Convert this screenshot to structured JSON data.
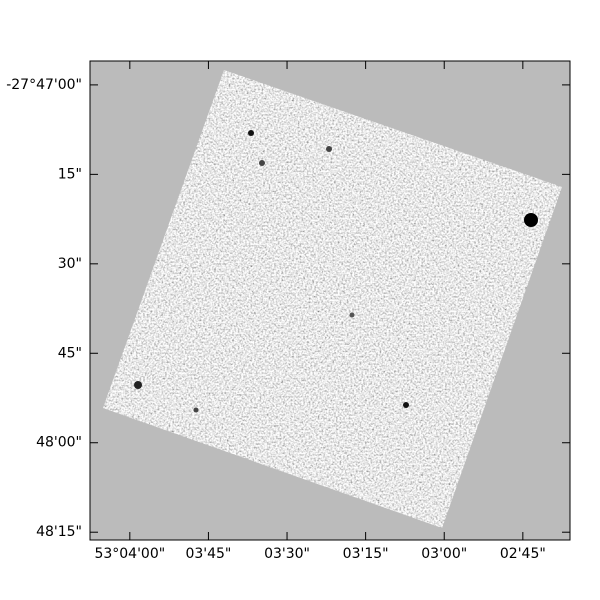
{
  "chart_data": {
    "type": "image",
    "xlim": [
      53.068778,
      53.043333
    ],
    "ylim": [
      -27.80453,
      -27.78222
    ],
    "xticks": [
      {
        "value": 53.066667,
        "label": "53°04'00\""
      },
      {
        "value": 53.0625,
        "label": "03'45\""
      },
      {
        "value": 53.058333,
        "label": "03'30\""
      },
      {
        "value": 53.054167,
        "label": "03'15\""
      },
      {
        "value": 53.05,
        "label": "03'00\""
      },
      {
        "value": 53.045833,
        "label": "02'45\""
      }
    ],
    "yticks": [
      {
        "value": -27.783333,
        "label": "-27°47'00\""
      },
      {
        "value": -27.7875,
        "label": "15\""
      },
      {
        "value": -27.791667,
        "label": "30\""
      },
      {
        "value": -27.795833,
        "label": "45\""
      },
      {
        "value": -27.8,
        "label": "48'00\""
      },
      {
        "value": -27.804167,
        "label": "48'15\""
      }
    ]
  }
}
